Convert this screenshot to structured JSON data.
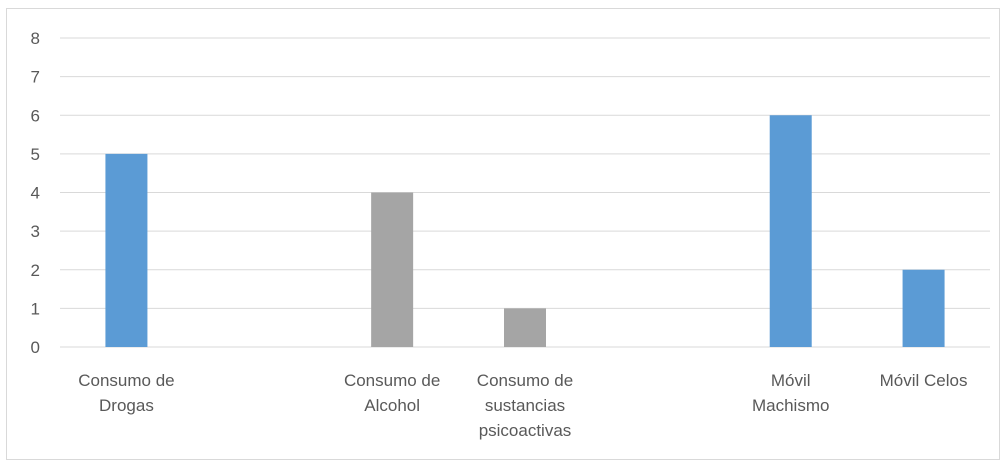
{
  "chart_data": {
    "type": "bar",
    "categories": [
      [
        "Consumo de",
        "Drogas"
      ],
      [],
      [
        "Consumo de",
        "Alcohol"
      ],
      [
        "Consumo de",
        "sustancias",
        "psicoactivas"
      ],
      [],
      [
        "Móvil",
        "Machismo"
      ],
      [
        "Móvil Celos"
      ]
    ],
    "values": [
      5,
      null,
      4,
      1,
      null,
      6,
      2
    ],
    "bar_colors": [
      "#5b9bd5",
      null,
      "#a5a5a5",
      "#a5a5a5",
      null,
      "#5b9bd5",
      "#5b9bd5"
    ],
    "ylim": [
      0,
      8
    ],
    "yticks": [
      0,
      1,
      2,
      3,
      4,
      5,
      6,
      7,
      8
    ],
    "grid": true,
    "gridline_color": "#d9d9d9",
    "title": "",
    "xlabel": "",
    "ylabel": ""
  }
}
